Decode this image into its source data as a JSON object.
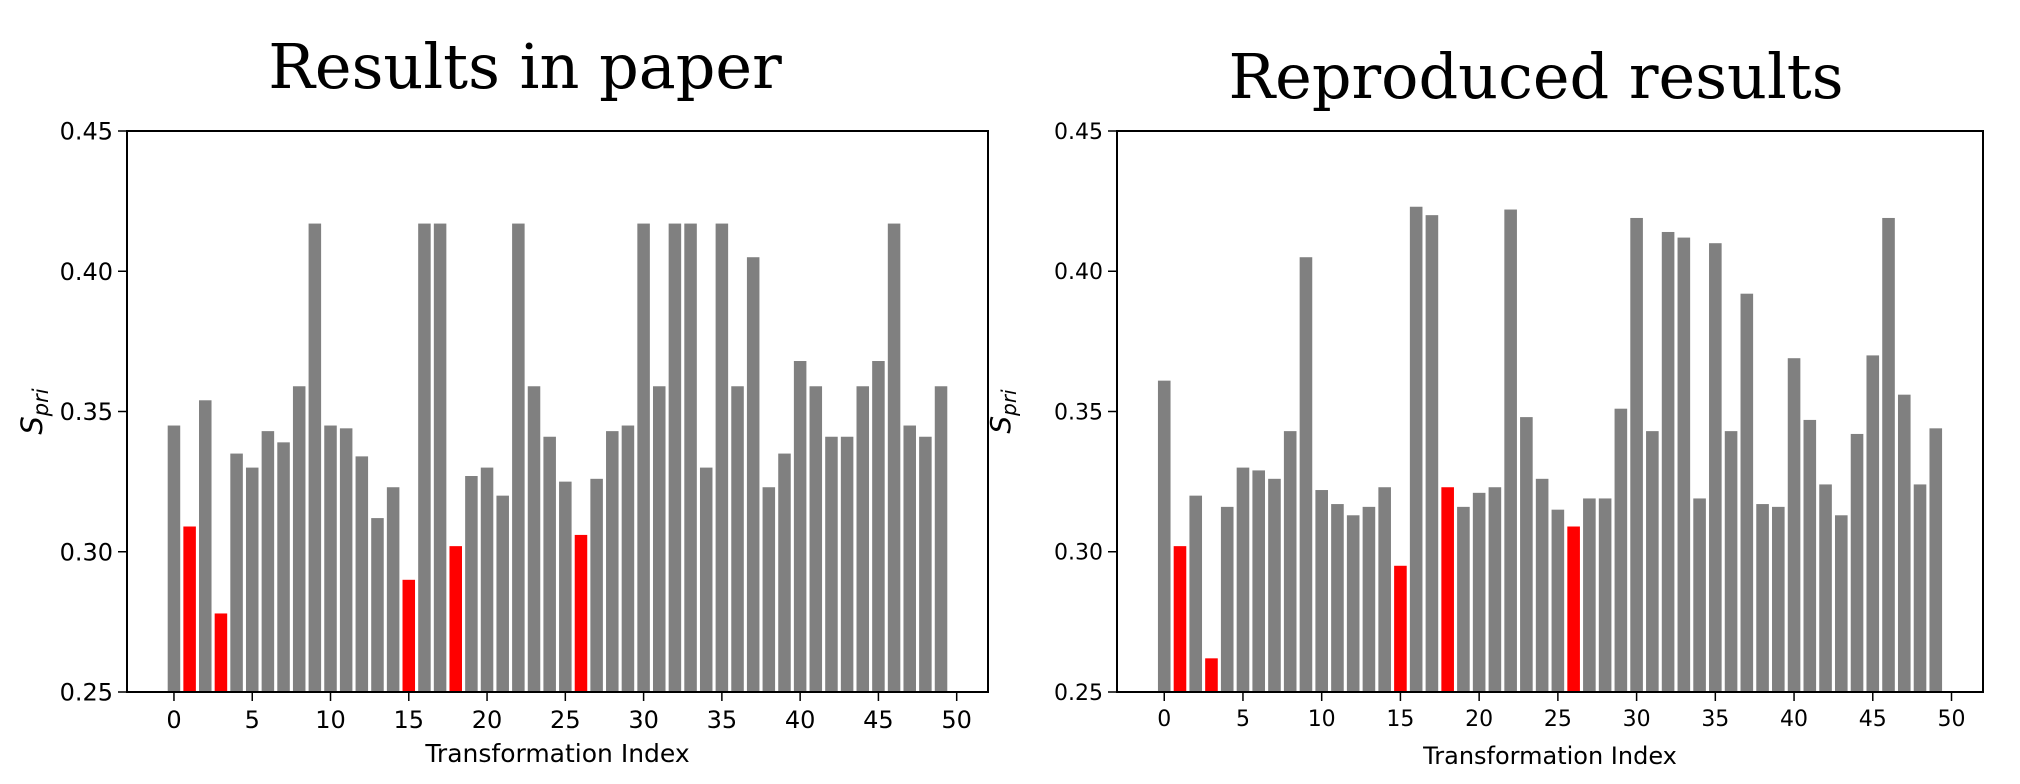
{
  "chart_data": [
    {
      "type": "bar",
      "title": "Results in paper",
      "xlabel": "Transformation Index",
      "ylabel_base": "S",
      "ylabel_sub": "pri",
      "ylim": [
        0.25,
        0.45
      ],
      "xlim": [
        -3,
        52
      ],
      "xticks": [
        0,
        5,
        10,
        15,
        20,
        25,
        30,
        35,
        40,
        45,
        50
      ],
      "yticks": [
        "0.25",
        "0.30",
        "0.35",
        "0.40",
        "0.45"
      ],
      "ytick_values": [
        0.25,
        0.3,
        0.35,
        0.4,
        0.45
      ],
      "x": [
        0,
        1,
        2,
        3,
        4,
        5,
        6,
        7,
        8,
        9,
        10,
        11,
        12,
        13,
        14,
        15,
        16,
        17,
        18,
        19,
        20,
        21,
        22,
        23,
        24,
        25,
        26,
        27,
        28,
        29,
        30,
        31,
        32,
        33,
        34,
        35,
        36,
        37,
        38,
        39,
        40,
        41,
        42,
        43,
        44,
        45,
        46,
        47,
        48,
        49
      ],
      "values": [
        0.345,
        0.309,
        0.354,
        0.278,
        0.335,
        0.33,
        0.343,
        0.339,
        0.359,
        0.417,
        0.345,
        0.344,
        0.334,
        0.312,
        0.323,
        0.29,
        0.417,
        0.417,
        0.302,
        0.327,
        0.33,
        0.32,
        0.417,
        0.359,
        0.341,
        0.325,
        0.306,
        0.326,
        0.343,
        0.345,
        0.417,
        0.359,
        0.417,
        0.417,
        0.33,
        0.417,
        0.359,
        0.405,
        0.323,
        0.335,
        0.368,
        0.359,
        0.341,
        0.341,
        0.359,
        0.368,
        0.417,
        0.345,
        0.341,
        0.359
      ],
      "highlight_indices": [
        1,
        3,
        15,
        18,
        26
      ],
      "colors": {
        "bar": "#808080",
        "highlight": "#ff0000"
      }
    },
    {
      "type": "bar",
      "title": "Reproduced results",
      "xlabel": "Transformation Index",
      "ylabel_base": "S",
      "ylabel_sub": "pri",
      "ylim": [
        0.25,
        0.45
      ],
      "xlim": [
        -3,
        52
      ],
      "xticks": [
        0,
        5,
        10,
        15,
        20,
        25,
        30,
        35,
        40,
        45,
        50
      ],
      "yticks": [
        "0.25",
        "0.30",
        "0.35",
        "0.40",
        "0.45"
      ],
      "ytick_values": [
        0.25,
        0.3,
        0.35,
        0.4,
        0.45
      ],
      "x": [
        0,
        1,
        2,
        3,
        4,
        5,
        6,
        7,
        8,
        9,
        10,
        11,
        12,
        13,
        14,
        15,
        16,
        17,
        18,
        19,
        20,
        21,
        22,
        23,
        24,
        25,
        26,
        27,
        28,
        29,
        30,
        31,
        32,
        33,
        34,
        35,
        36,
        37,
        38,
        39,
        40,
        41,
        42,
        43,
        44,
        45,
        46,
        47,
        48,
        49
      ],
      "values": [
        0.361,
        0.302,
        0.32,
        0.262,
        0.316,
        0.33,
        0.329,
        0.326,
        0.343,
        0.405,
        0.322,
        0.317,
        0.313,
        0.316,
        0.323,
        0.295,
        0.423,
        0.42,
        0.323,
        0.316,
        0.321,
        0.323,
        0.422,
        0.348,
        0.326,
        0.315,
        0.309,
        0.319,
        0.319,
        0.351,
        0.419,
        0.343,
        0.414,
        0.412,
        0.319,
        0.41,
        0.343,
        0.392,
        0.317,
        0.316,
        0.369,
        0.347,
        0.324,
        0.313,
        0.342,
        0.37,
        0.419,
        0.356,
        0.324,
        0.344
      ],
      "highlight_indices": [
        1,
        3,
        15,
        18,
        26
      ],
      "colors": {
        "bar": "#808080",
        "highlight": "#ff0000"
      }
    }
  ]
}
